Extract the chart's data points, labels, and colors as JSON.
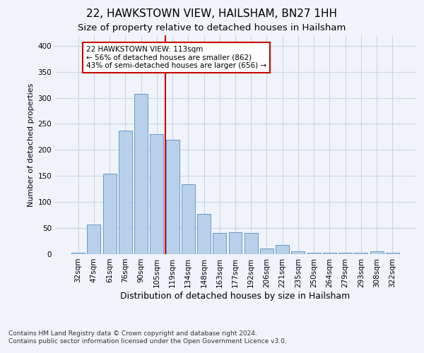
{
  "title": "22, HAWKSTOWN VIEW, HAILSHAM, BN27 1HH",
  "subtitle": "Size of property relative to detached houses in Hailsham",
  "xlabel": "Distribution of detached houses by size in Hailsham",
  "ylabel": "Number of detached properties",
  "categories": [
    "32sqm",
    "47sqm",
    "61sqm",
    "76sqm",
    "90sqm",
    "105sqm",
    "119sqm",
    "134sqm",
    "148sqm",
    "163sqm",
    "177sqm",
    "192sqm",
    "206sqm",
    "221sqm",
    "235sqm",
    "250sqm",
    "264sqm",
    "279sqm",
    "293sqm",
    "308sqm",
    "322sqm"
  ],
  "values": [
    3,
    57,
    155,
    237,
    307,
    230,
    219,
    134,
    77,
    41,
    42,
    41,
    11,
    17,
    6,
    3,
    3,
    3,
    3,
    5,
    3
  ],
  "bar_color": "#b8d0ea",
  "bar_edgecolor": "#6699cc",
  "vline_x": 5.57,
  "vline_color": "#cc0000",
  "annotation_text": "22 HAWKSTOWN VIEW: 113sqm\n← 56% of detached houses are smaller (862)\n43% of semi-detached houses are larger (656) →",
  "annotation_box_color": "#ffffff",
  "annotation_box_edgecolor": "#cc0000",
  "ylim": [
    0,
    420
  ],
  "yticks": [
    0,
    50,
    100,
    150,
    200,
    250,
    300,
    350,
    400
  ],
  "background_color": "#f0f4fa",
  "grid_color": "#c8d4e8",
  "footer_line1": "Contains HM Land Registry data © Crown copyright and database right 2024.",
  "footer_line2": "Contains public sector information licensed under the Open Government Licence v3.0.",
  "title_fontsize": 11,
  "subtitle_fontsize": 9.5,
  "xlabel_fontsize": 9,
  "ylabel_fontsize": 8,
  "tick_fontsize": 7.5,
  "annotation_fontsize": 7.5,
  "footer_fontsize": 6.5
}
